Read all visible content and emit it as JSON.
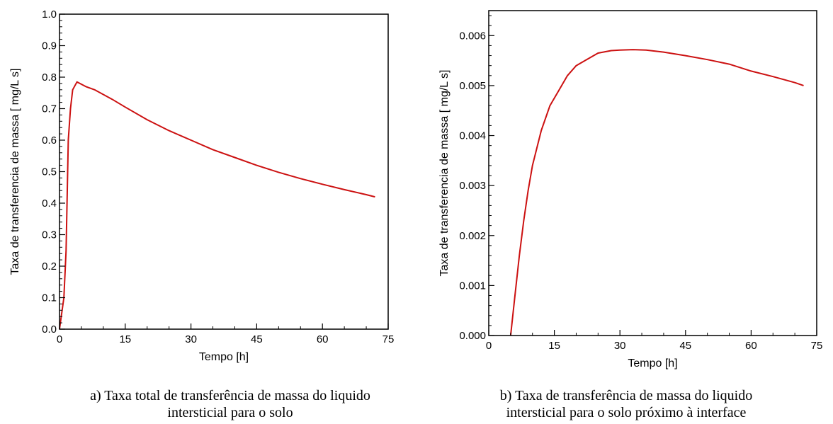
{
  "chart_data": [
    {
      "type": "line",
      "xlabel": "Tempo [h]",
      "ylabel": "Taxa de transferencia de massa  [ mg/L s]",
      "xlim": [
        0,
        75
      ],
      "ylim": [
        0,
        1.0
      ],
      "xticks": [
        "0",
        "15",
        "30",
        "45",
        "60",
        "75"
      ],
      "yticks": [
        "0.0",
        "0.1",
        "0.2",
        "0.3",
        "0.4",
        "0.5",
        "0.6",
        "0.7",
        "0.8",
        "0.9",
        "1.0"
      ],
      "grid": false,
      "series": [
        {
          "color": "#cc1111",
          "x": [
            0,
            1,
            1.5,
            2,
            2.5,
            3,
            4,
            6,
            8,
            12,
            15,
            20,
            25,
            30,
            35,
            40,
            45,
            50,
            55,
            60,
            65,
            70,
            72
          ],
          "y": [
            0.0,
            0.1,
            0.25,
            0.6,
            0.7,
            0.76,
            0.785,
            0.77,
            0.76,
            0.73,
            0.705,
            0.665,
            0.63,
            0.6,
            0.57,
            0.545,
            0.52,
            0.498,
            0.478,
            0.46,
            0.443,
            0.427,
            0.42
          ]
        }
      ],
      "caption": [
        "a) Taxa total de transferência de massa do liquido",
        "intersticial para o solo"
      ]
    },
    {
      "type": "line",
      "xlabel": "Tempo [h]",
      "ylabel": "Taxa de transferencia de massa  [ mg/L s]",
      "xlim": [
        0,
        75
      ],
      "ylim": [
        0,
        0.0065
      ],
      "xticks": [
        "0",
        "15",
        "30",
        "45",
        "60",
        "75"
      ],
      "yticks": [
        "0.000",
        "0.001",
        "0.002",
        "0.003",
        "0.004",
        "0.005",
        "0.006"
      ],
      "grid": false,
      "series": [
        {
          "color": "#cc1111",
          "x": [
            5,
            6,
            7,
            8,
            9,
            10,
            12,
            14,
            16,
            18,
            20,
            22,
            25,
            28,
            30,
            33,
            36,
            40,
            45,
            50,
            55,
            60,
            65,
            70,
            72
          ],
          "y": [
            0.0,
            0.0008,
            0.0016,
            0.0023,
            0.0029,
            0.0034,
            0.0041,
            0.0046,
            0.0049,
            0.0052,
            0.0054,
            0.0055,
            0.00565,
            0.0057,
            0.00571,
            0.00572,
            0.00571,
            0.00567,
            0.0056,
            0.00552,
            0.00543,
            0.00529,
            0.00518,
            0.00506,
            0.005
          ]
        }
      ],
      "caption": [
        "b) Taxa de transferência de massa do liquido",
        "intersticial para o solo próximo à interface"
      ]
    }
  ]
}
